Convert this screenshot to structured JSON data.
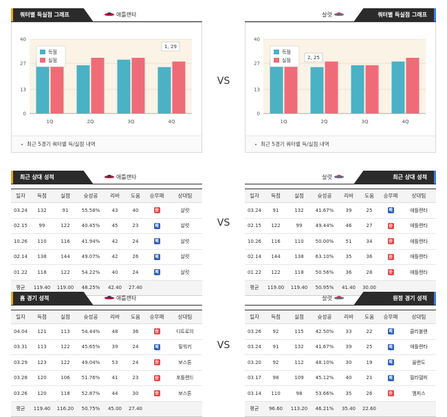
{
  "vs_label": "VS",
  "left_team": "애틀랜타",
  "right_team": "살럿",
  "colors": {
    "scored": "#4bb1c5",
    "conceded": "#f06b78",
    "win": "#e34a4a",
    "loss": "#2f5fb8"
  },
  "charts": {
    "left": {
      "header": "쿼터별 득실점 그래프",
      "footnote": "최근 5경기 쿼터별 득/실점 내역",
      "annotation": "1, 29",
      "legend": [
        "득점",
        "실점"
      ]
    },
    "right": {
      "header": "쿼터별 득실점 그래프",
      "footnote": "최근 5경기 쿼터별 득/실점 내역",
      "annotation": "2, 25",
      "legend": [
        "득점",
        "실점"
      ]
    }
  },
  "chart_data": [
    {
      "type": "bar",
      "categories": [
        "1Q",
        "2Q",
        "3Q",
        "4Q"
      ],
      "ylim": [
        0,
        40
      ],
      "yticks": [
        0,
        13,
        27,
        40
      ],
      "series": [
        {
          "name": "득점",
          "values": [
            29,
            26,
            29,
            25
          ]
        },
        {
          "name": "실점",
          "values": [
            28,
            30,
            30,
            28
          ]
        }
      ]
    },
    {
      "type": "bar",
      "categories": [
        "1Q",
        "2Q",
        "3Q",
        "4Q"
      ],
      "ylim": [
        0,
        40
      ],
      "yticks": [
        0,
        13,
        27,
        40
      ],
      "series": [
        {
          "name": "득점",
          "values": [
            29,
            25,
            26,
            28
          ]
        },
        {
          "name": "실점",
          "values": [
            30,
            28,
            26,
            30
          ]
        }
      ]
    }
  ],
  "tables": {
    "recent_left": {
      "header": "최근 상대 성적",
      "columns": [
        "일자",
        "득점",
        "실점",
        "슛성공",
        "리바",
        "도움",
        "승무패",
        "상대팀"
      ],
      "rows": [
        [
          "03.24",
          "132",
          "91",
          "55.58%",
          "43",
          "40",
          "win",
          "살럿"
        ],
        [
          "02.15",
          "99",
          "122",
          "40.45%",
          "45",
          "23",
          "loss",
          "살럿"
        ],
        [
          "10.26",
          "110",
          "116",
          "41.94%",
          "42",
          "24",
          "loss",
          "살럿"
        ],
        [
          "02.14",
          "138",
          "144",
          "49.07%",
          "42",
          "26",
          "loss",
          "살럿"
        ],
        [
          "01.22",
          "118",
          "122",
          "54.22%",
          "40",
          "24",
          "loss",
          "살럿"
        ]
      ],
      "avg": [
        "평균",
        "119.40",
        "119.00",
        "48.25%",
        "42.40",
        "27.40",
        "",
        ""
      ]
    },
    "recent_right": {
      "header": "최근 상대 성적",
      "columns": [
        "일자",
        "득점",
        "실점",
        "슛성공",
        "리바",
        "도움",
        "승무패",
        "상대팀"
      ],
      "rows": [
        [
          "03.24",
          "91",
          "132",
          "41.67%",
          "39",
          "25",
          "loss",
          "애틀랜타"
        ],
        [
          "02.15",
          "122",
          "99",
          "49.44%",
          "46",
          "27",
          "win",
          "애틀랜타"
        ],
        [
          "10.26",
          "116",
          "110",
          "50.00%",
          "51",
          "34",
          "win",
          "애틀랜타"
        ],
        [
          "02.14",
          "144",
          "138",
          "63.10%",
          "35",
          "36",
          "win",
          "애틀랜타"
        ],
        [
          "01.22",
          "122",
          "118",
          "50.56%",
          "36",
          "28",
          "win",
          "애틀랜타"
        ]
      ],
      "avg": [
        "평균",
        "119.00",
        "119.40",
        "50.95%",
        "41.40",
        "30.00",
        "",
        ""
      ]
    },
    "home_left": {
      "header": "홈 경기 성적",
      "columns": [
        "일자",
        "득점",
        "실점",
        "슛성공",
        "리바",
        "도움",
        "승무패",
        "상대팀"
      ],
      "rows": [
        [
          "04.04",
          "121",
          "113",
          "54.44%",
          "48",
          "36",
          "win",
          "디트로이"
        ],
        [
          "03.31",
          "113",
          "122",
          "45.65%",
          "39",
          "24",
          "loss",
          "밀워키"
        ],
        [
          "03.29",
          "123",
          "122",
          "49.04%",
          "53",
          "24",
          "win",
          "보스톤"
        ],
        [
          "03.28",
          "120",
          "106",
          "51.76%",
          "41",
          "23",
          "win",
          "포틀랜드"
        ],
        [
          "03.26",
          "120",
          "118",
          "52.87%",
          "44",
          "30",
          "win",
          "보스톤"
        ]
      ],
      "avg": [
        "평균",
        "119.40",
        "116.20",
        "50.75%",
        "45.00",
        "27.40",
        "",
        ""
      ]
    },
    "away_right": {
      "header": "원정 경기 성적",
      "columns": [
        "일자",
        "득점",
        "실점",
        "슛성공",
        "리바",
        "도움",
        "승무패",
        "상대팀"
      ],
      "rows": [
        [
          "03.26",
          "92",
          "115",
          "42.50%",
          "33",
          "22",
          "loss",
          "클리블랜"
        ],
        [
          "03.24",
          "91",
          "132",
          "41.67%",
          "39",
          "25",
          "loss",
          "애틀랜타"
        ],
        [
          "03.20",
          "92",
          "112",
          "48.10%",
          "30",
          "19",
          "loss",
          "올랜도"
        ],
        [
          "03.17",
          "98",
          "109",
          "45.12%",
          "40",
          "21",
          "loss",
          "필라델피"
        ],
        [
          "03.14",
          "110",
          "98",
          "53.66%",
          "35",
          "26",
          "win",
          "멤피스"
        ]
      ],
      "avg": [
        "평균",
        "96.60",
        "113.20",
        "46.21%",
        "35.40",
        "22.60",
        "",
        ""
      ]
    }
  },
  "result_glyphs": {
    "win": "승",
    "loss": "패"
  }
}
